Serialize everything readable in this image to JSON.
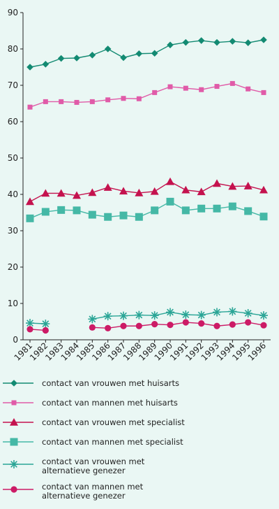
{
  "chart_data": {
    "type": "line",
    "x": [
      "1981",
      "1982",
      "1983",
      "1984",
      "1985",
      "1986",
      "1987",
      "1988",
      "1989",
      "1990",
      "1991",
      "1992",
      "1993",
      "1994",
      "1995",
      "1996"
    ],
    "ylim": [
      0,
      90
    ],
    "yticks": [
      0,
      10,
      20,
      30,
      40,
      50,
      60,
      70,
      80,
      90
    ],
    "grid": false,
    "series": [
      {
        "name": "contact van vrouwen met huisarts",
        "color": "#138a72",
        "marker": "diamond",
        "values": [
          75,
          75.8,
          77.4,
          77.5,
          78.3,
          80,
          77.6,
          78.7,
          78.8,
          81.1,
          81.8,
          82.3,
          81.8,
          82.1,
          81.7,
          82.5
        ]
      },
      {
        "name": "contact van mannen met huisarts",
        "color": "#e05ba8",
        "marker": "square",
        "values": [
          64,
          65.5,
          65.5,
          65.3,
          65.5,
          66,
          66.4,
          66.3,
          68,
          69.6,
          69.2,
          68.8,
          69.7,
          70.5,
          69,
          68
        ]
      },
      {
        "name": "contact van vrouwen met specialist",
        "color": "#c4124e",
        "marker": "triangle",
        "values": [
          38,
          40.3,
          40.3,
          39.7,
          40.5,
          41.9,
          40.9,
          40.4,
          40.8,
          43.5,
          41.2,
          40.7,
          43,
          42.2,
          42.3,
          41.2
        ]
      },
      {
        "name": "contact van mannen met specialist",
        "color": "#45b8a6",
        "marker": "bigsquare",
        "values": [
          33.4,
          35.2,
          35.7,
          35.6,
          34.4,
          33.8,
          34.2,
          33.8,
          35.6,
          38,
          35.6,
          36.1,
          36.1,
          36.7,
          35.4,
          33.9
        ]
      },
      {
        "name": "contact van vrouwen met alternatieve genezer",
        "color": "#2aa596",
        "marker": "star",
        "values": [
          4.6,
          4.4,
          null,
          null,
          5.7,
          6.5,
          6.6,
          6.8,
          6.7,
          7.6,
          6.9,
          6.8,
          7.6,
          7.8,
          7.3,
          6.7
        ]
      },
      {
        "name": "contact van mannen met alternatieve genezer",
        "color": "#cc1b66",
        "marker": "circle",
        "values": [
          2.9,
          2.6,
          null,
          null,
          3.4,
          3.2,
          3.8,
          3.8,
          4.3,
          4.1,
          4.8,
          4.5,
          3.8,
          4.2,
          4.8,
          4.0
        ]
      }
    ]
  },
  "legend": [
    {
      "label_lines": [
        "contact van vrouwen met huisarts"
      ]
    },
    {
      "label_lines": [
        "contact van mannen met huisarts"
      ]
    },
    {
      "label_lines": [
        "contact van vrouwen met specialist"
      ]
    },
    {
      "label_lines": [
        "contact van mannen met specialist"
      ]
    },
    {
      "label_lines": [
        "contact van vrouwen met",
        "alternatieve genezer"
      ]
    },
    {
      "label_lines": [
        "contact van mannen met",
        "alternatieve genezer"
      ]
    }
  ]
}
